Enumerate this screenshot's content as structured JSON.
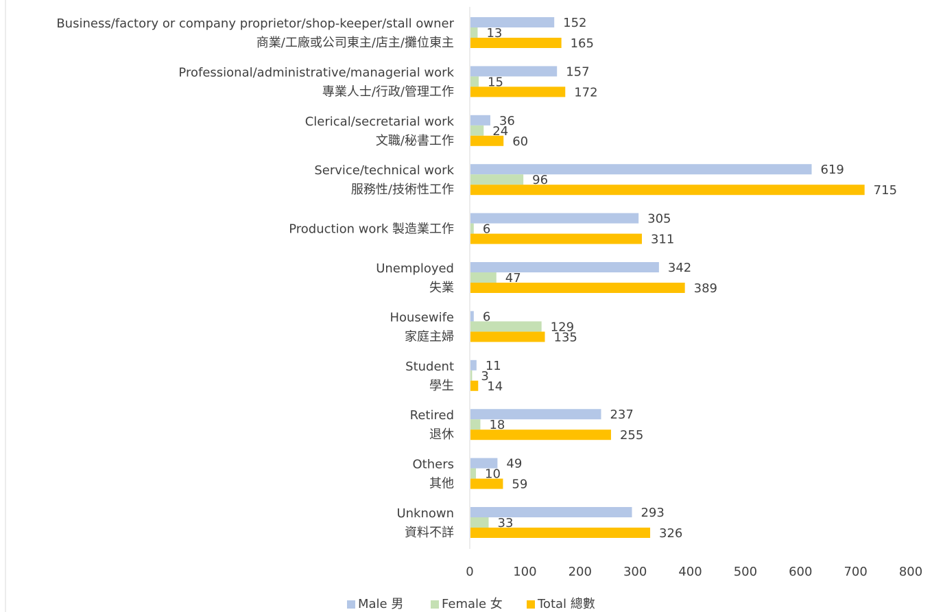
{
  "chart_data": {
    "type": "bar",
    "orientation": "horizontal",
    "categories": [
      [
        "Business/factory or company proprietor/shop-keeper/stall owner",
        "商業/工廠或公司東主/店主/攤位東主"
      ],
      [
        "Professional/administrative/managerial work",
        "專業人士/行政/管理工作"
      ],
      [
        "Clerical/secretarial work",
        "文職/秘書工作"
      ],
      [
        "Service/technical work",
        "服務性/技術性工作"
      ],
      [
        "Production work 製造業工作"
      ],
      [
        "Unemployed",
        "失業"
      ],
      [
        "Housewife",
        "家庭主婦"
      ],
      [
        "Student",
        "學生"
      ],
      [
        "Retired",
        "退休"
      ],
      [
        "Others",
        "其他"
      ],
      [
        "Unknown",
        "資料不詳"
      ]
    ],
    "series": [
      {
        "name": "Male 男",
        "color": "#B4C7E7",
        "values": [
          152,
          157,
          36,
          619,
          305,
          342,
          6,
          11,
          237,
          49,
          293
        ]
      },
      {
        "name": "Female 女",
        "color": "#C5E0B4",
        "values": [
          13,
          15,
          24,
          96,
          6,
          47,
          129,
          3,
          18,
          10,
          33
        ]
      },
      {
        "name": "Total 總數",
        "color": "#FFC000",
        "values": [
          165,
          172,
          60,
          715,
          311,
          389,
          135,
          14,
          255,
          59,
          326
        ]
      }
    ],
    "xlim": [
      0,
      800
    ],
    "xticks": [
      0,
      100,
      200,
      300,
      400,
      500,
      600,
      700,
      800
    ],
    "grid": false,
    "legend": "bottom"
  }
}
